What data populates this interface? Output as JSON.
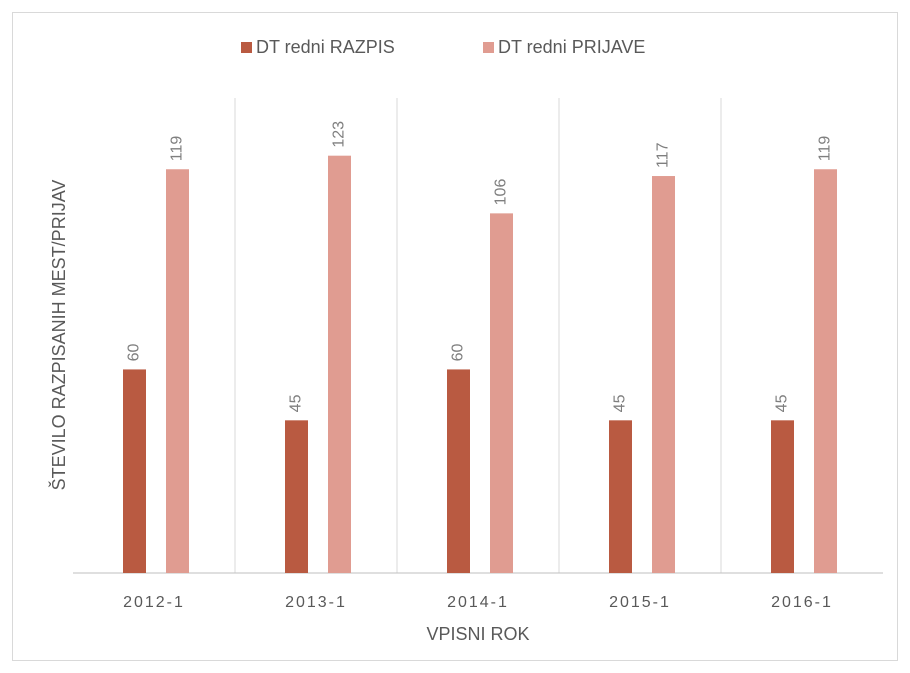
{
  "chart_data": {
    "type": "bar",
    "categories": [
      "2012-1",
      "2013-1",
      "2014-1",
      "2015-1",
      "2016-1"
    ],
    "series": [
      {
        "name": "DT redni RAZPIS",
        "color": "#b95a41",
        "values": [
          60,
          45,
          60,
          45,
          45
        ]
      },
      {
        "name": "DT redni PRIJAVE",
        "color": "#e09c91",
        "values": [
          119,
          123,
          106,
          117,
          119
        ]
      }
    ],
    "xlabel": "VPISNI ROK",
    "ylabel": "ŠTEVILO RAZPISANIH MEST/PRIJAV",
    "ylim": [
      0,
      140
    ],
    "legend": "top"
  }
}
